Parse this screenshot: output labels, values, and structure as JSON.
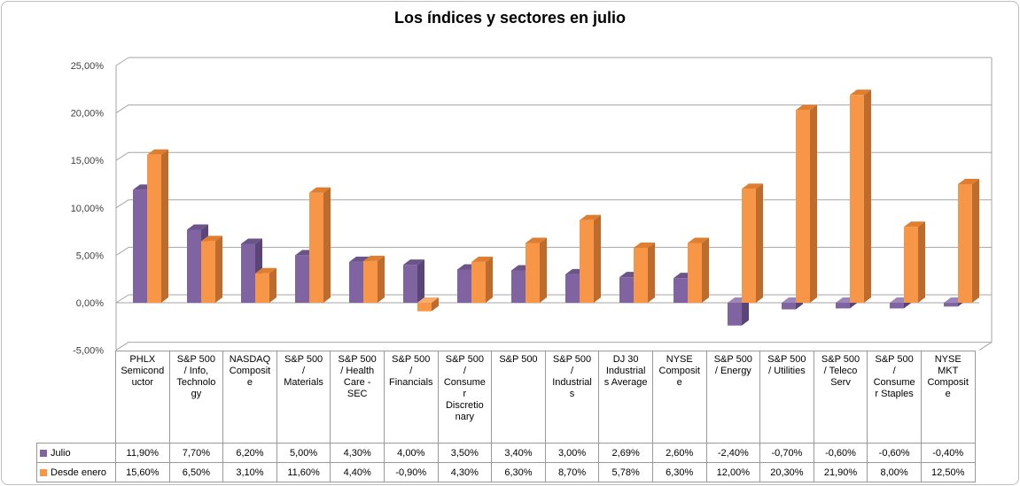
{
  "chart_data": {
    "type": "bar",
    "style": "3d-clustered-column",
    "title": "Los índices y sectores en julio",
    "categories": [
      "PHLX\nSemicond\nuctor",
      "S&P 500\n/ Info,\nTechnolo\ngy",
      "NASDAQ\nComposit\ne",
      "S&P 500\n/\nMaterials",
      "S&P 500\n/ Health\nCare -\nSEC",
      "S&P 500\n/\nFinancials",
      "S&P 500\n/\nConsume\nr\nDiscretio\nnary",
      "S&P 500",
      "S&P 500\n/\nIndustrial\ns",
      "DJ 30\nIndustrial\ns Average",
      "NYSE\nComposit\ne",
      "S&P 500\n/ Energy",
      "S&P 500\n/ Utilities",
      "S&P 500\n/ Teleco\nServ",
      "S&P 500\n/\nConsume\nr Staples",
      "NYSE\nMKT\nComposit\ne"
    ],
    "series": [
      {
        "name": "Julio",
        "color": "#8064A2",
        "values": [
          11.9,
          7.7,
          6.2,
          5.0,
          4.3,
          4.0,
          3.5,
          3.4,
          3.0,
          2.69,
          2.6,
          -2.4,
          -0.7,
          -0.6,
          -0.6,
          -0.4
        ],
        "display": [
          "11,90%",
          "7,70%",
          "6,20%",
          "5,00%",
          "4,30%",
          "4,00%",
          "3,50%",
          "3,40%",
          "3,00%",
          "2,69%",
          "2,60%",
          "-2,40%",
          "-0,70%",
          "-0,60%",
          "-0,60%",
          "-0,40%"
        ]
      },
      {
        "name": "Desde enero",
        "color": "#F79646",
        "values": [
          15.6,
          6.5,
          3.1,
          11.6,
          4.4,
          -0.9,
          4.3,
          6.3,
          8.7,
          5.78,
          6.3,
          12.0,
          20.3,
          21.9,
          8.0,
          12.5
        ],
        "display": [
          "15,60%",
          "6,50%",
          "3,10%",
          "11,60%",
          "4,40%",
          "-0,90%",
          "4,30%",
          "6,30%",
          "8,70%",
          "5,78%",
          "6,30%",
          "12,00%",
          "20,30%",
          "21,90%",
          "8,00%",
          "12,50%"
        ]
      }
    ],
    "ylim": [
      -5,
      25
    ],
    "ytick_step": 5,
    "ytick_labels": [
      "25,00%",
      "20,00%",
      "15,00%",
      "10,00%",
      "5,00%",
      "0,00%",
      "-5,00%"
    ],
    "grid": true,
    "legend_position": "data-table-left"
  },
  "colors": {
    "series_purple": "#8064A2",
    "series_purple_top": "#6A5489",
    "series_purple_top_negative": "#9C88B8",
    "series_purple_side": "#594677",
    "series_orange": "#F79646",
    "series_orange_top": "#DF7E2F",
    "series_orange_top_negative": "#F9AC6C",
    "series_orange_side": "#BE6B2E",
    "gridline": "#A6A6A6",
    "axis_line": "#A6A6A6",
    "table_border": "#999999",
    "outer_border": "#BDBDBD",
    "title_color": "#000000",
    "label_color": "#3F3F3F"
  }
}
